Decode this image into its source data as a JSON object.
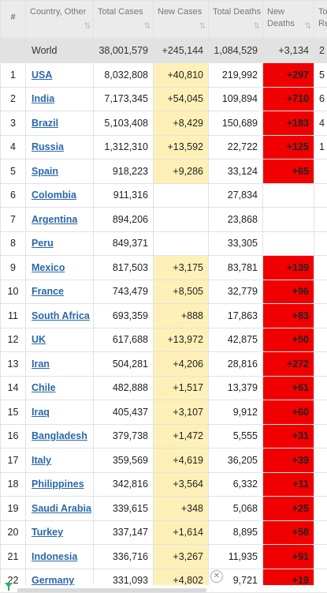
{
  "headers": {
    "idx": "#",
    "country": "Country, Other",
    "total_cases": "Total Cases",
    "new_cases": "New Cases",
    "total_deaths": "Total Deaths",
    "new_deaths": "New Deaths",
    "total_recovered": "Tot Rec"
  },
  "sort_icon": "⇅",
  "world": {
    "label": "World",
    "total_cases": "38,001,579",
    "new_cases": "+245,144",
    "total_deaths": "1,084,529",
    "new_deaths": "+3,134",
    "total_recovered": "2"
  },
  "rows": [
    {
      "idx": "1",
      "country": "USA",
      "total_cases": "8,032,808",
      "new_cases": "+40,810",
      "total_deaths": "219,992",
      "new_deaths": "+297",
      "tr": "5"
    },
    {
      "idx": "2",
      "country": "India",
      "total_cases": "7,173,345",
      "new_cases": "+54,045",
      "total_deaths": "109,894",
      "new_deaths": "+710",
      "tr": "6"
    },
    {
      "idx": "3",
      "country": "Brazil",
      "total_cases": "5,103,408",
      "new_cases": "+8,429",
      "total_deaths": "150,689",
      "new_deaths": "+183",
      "tr": "4"
    },
    {
      "idx": "4",
      "country": "Russia",
      "total_cases": "1,312,310",
      "new_cases": "+13,592",
      "total_deaths": "22,722",
      "new_deaths": "+125",
      "tr": "1"
    },
    {
      "idx": "5",
      "country": "Spain",
      "total_cases": "918,223",
      "new_cases": "+9,286",
      "total_deaths": "33,124",
      "new_deaths": "+65",
      "tr": ""
    },
    {
      "idx": "6",
      "country": "Colombia",
      "total_cases": "911,316",
      "new_cases": "",
      "total_deaths": "27,834",
      "new_deaths": "",
      "tr": ""
    },
    {
      "idx": "7",
      "country": "Argentina",
      "total_cases": "894,206",
      "new_cases": "",
      "total_deaths": "23,868",
      "new_deaths": "",
      "tr": ""
    },
    {
      "idx": "8",
      "country": "Peru",
      "total_cases": "849,371",
      "new_cases": "",
      "total_deaths": "33,305",
      "new_deaths": "",
      "tr": ""
    },
    {
      "idx": "9",
      "country": "Mexico",
      "total_cases": "817,503",
      "new_cases": "+3,175",
      "total_deaths": "83,781",
      "new_deaths": "+139",
      "tr": ""
    },
    {
      "idx": "10",
      "country": "France",
      "total_cases": "743,479",
      "new_cases": "+8,505",
      "total_deaths": "32,779",
      "new_deaths": "+96",
      "tr": ""
    },
    {
      "idx": "11",
      "country": "South Africa",
      "total_cases": "693,359",
      "new_cases": "+888",
      "total_deaths": "17,863",
      "new_deaths": "+83",
      "tr": ""
    },
    {
      "idx": "12",
      "country": "UK",
      "total_cases": "617,688",
      "new_cases": "+13,972",
      "total_deaths": "42,875",
      "new_deaths": "+50",
      "tr": ""
    },
    {
      "idx": "13",
      "country": "Iran",
      "total_cases": "504,281",
      "new_cases": "+4,206",
      "total_deaths": "28,816",
      "new_deaths": "+272",
      "tr": ""
    },
    {
      "idx": "14",
      "country": "Chile",
      "total_cases": "482,888",
      "new_cases": "+1,517",
      "total_deaths": "13,379",
      "new_deaths": "+61",
      "tr": ""
    },
    {
      "idx": "15",
      "country": "Iraq",
      "total_cases": "405,437",
      "new_cases": "+3,107",
      "total_deaths": "9,912",
      "new_deaths": "+60",
      "tr": ""
    },
    {
      "idx": "16",
      "country": "Bangladesh",
      "total_cases": "379,738",
      "new_cases": "+1,472",
      "total_deaths": "5,555",
      "new_deaths": "+31",
      "tr": ""
    },
    {
      "idx": "17",
      "country": "Italy",
      "total_cases": "359,569",
      "new_cases": "+4,619",
      "total_deaths": "36,205",
      "new_deaths": "+39",
      "tr": ""
    },
    {
      "idx": "18",
      "country": "Philippines",
      "total_cases": "342,816",
      "new_cases": "+3,564",
      "total_deaths": "6,332",
      "new_deaths": "+11",
      "tr": ""
    },
    {
      "idx": "19",
      "country": "Saudi Arabia",
      "total_cases": "339,615",
      "new_cases": "+348",
      "total_deaths": "5,068",
      "new_deaths": "+25",
      "tr": ""
    },
    {
      "idx": "20",
      "country": "Turkey",
      "total_cases": "337,147",
      "new_cases": "+1,614",
      "total_deaths": "8,895",
      "new_deaths": "+58",
      "tr": ""
    },
    {
      "idx": "21",
      "country": "Indonesia",
      "total_cases": "336,716",
      "new_cases": "+3,267",
      "total_deaths": "11,935",
      "new_deaths": "+91",
      "tr": ""
    },
    {
      "idx": "22",
      "country": "Germany",
      "total_cases": "331,093",
      "new_cases": "+4,802",
      "total_deaths": "9,721",
      "new_deaths": "+19",
      "tr": ""
    }
  ],
  "colors": {
    "header_bg": "#ebebeb",
    "world_bg": "#e2e2e2",
    "new_cases_bg": "#fff0b8",
    "new_deaths_bg": "#f00000",
    "link": "#2a68a8"
  },
  "icons": {
    "close_ad": "close-icon",
    "logo": "funnel-logo-icon"
  },
  "close_glyph": "✕"
}
